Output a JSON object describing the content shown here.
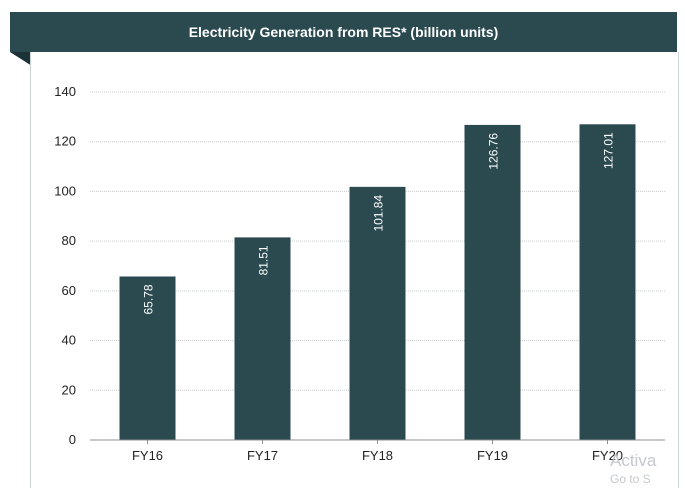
{
  "chart_data": {
    "type": "bar",
    "title": "Electricity Generation from RES* (billion units)",
    "categories": [
      "FY16",
      "FY17",
      "FY18",
      "FY19",
      "FY20"
    ],
    "values": [
      65.78,
      81.51,
      101.84,
      126.76,
      127.01
    ],
    "value_labels": [
      "65.78",
      "81.51",
      "101.84",
      "126.76",
      "127.01"
    ],
    "yticks": [
      0,
      20,
      40,
      60,
      80,
      100,
      120,
      140
    ],
    "ylim": [
      0,
      140
    ],
    "xlabel": "",
    "ylabel": "",
    "grid": true,
    "legend": "none",
    "bar_color": "#2b4a50"
  },
  "watermark": {
    "line1": "Activa",
    "line2": "Go to S"
  }
}
